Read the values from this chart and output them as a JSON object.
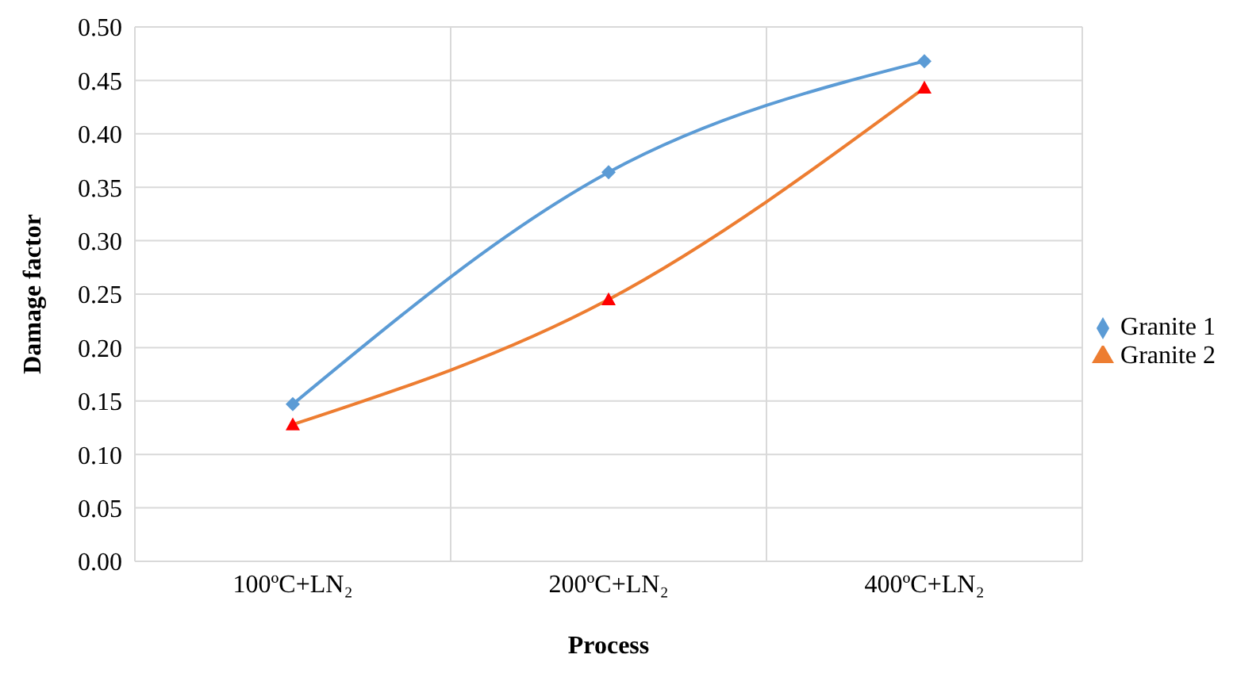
{
  "chart_data": {
    "type": "line",
    "xlabel": "Process",
    "ylabel": "Damage factor",
    "categories": [
      "100ºC+LN₂",
      "200ºC+LN₂",
      "400ºC+LN₂"
    ],
    "series": [
      {
        "name": "Granite 1",
        "color": "#5b9bd5",
        "marker": "diamond",
        "values": [
          0.147,
          0.364,
          0.468
        ]
      },
      {
        "name": "Granite 2",
        "color": "#ed7d31",
        "marker": "triangle",
        "values": [
          0.128,
          0.245,
          0.443
        ]
      }
    ],
    "ylim": [
      0,
      0.5
    ],
    "yticks": [
      {
        "value": 0,
        "label": "0.00"
      },
      {
        "value": 0.05,
        "label": "0.05"
      },
      {
        "value": 0.1,
        "label": "0.10"
      },
      {
        "value": 0.15,
        "label": "0.15"
      },
      {
        "value": 0.2,
        "label": "0.20"
      },
      {
        "value": 0.25,
        "label": "0.25"
      },
      {
        "value": 0.3,
        "label": "0.30"
      },
      {
        "value": 0.35,
        "label": "0.35"
      },
      {
        "value": 0.4,
        "label": "0.40"
      },
      {
        "value": 0.45,
        "label": "0.45"
      },
      {
        "value": 0.5,
        "label": "0.50"
      }
    ],
    "grid": true,
    "legend": "right",
    "line_style": "solid"
  }
}
